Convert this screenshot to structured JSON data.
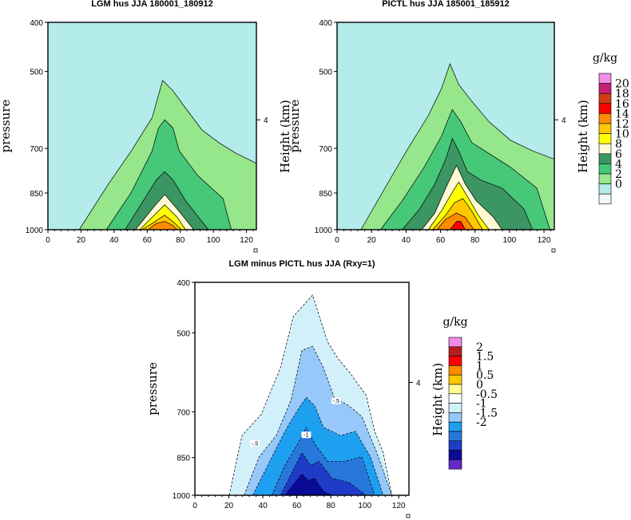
{
  "chart_data": [
    {
      "type": "heatmap",
      "title": "LGM hus JJA 180001_180912",
      "ylabel": "pressure",
      "right_label": "Height (km)",
      "right_tick": "4",
      "xlim": [
        0,
        126
      ],
      "x_ticks": [
        "0",
        "20",
        "40",
        "60",
        "80",
        "100",
        "120"
      ],
      "y_ticks": [
        "400",
        "500",
        "700",
        "850",
        "1000"
      ],
      "background_level": "0-2",
      "contour_levels": [
        2,
        4,
        6,
        8,
        10,
        12
      ],
      "peak_value_g_per_kg": 13,
      "peak_location": {
        "x": 70,
        "pressure": 1000
      }
    },
    {
      "type": "heatmap",
      "title": "PICTL hus JJA 185001_185912",
      "ylabel": "pressure",
      "right_label": "Height (km)",
      "right_tick": "4",
      "xlim": [
        0,
        126
      ],
      "x_ticks": [
        "0",
        "20",
        "40",
        "60",
        "80",
        "100",
        "120"
      ],
      "y_ticks": [
        "400",
        "500",
        "700",
        "850",
        "1000"
      ],
      "background_level": "0-2",
      "contour_levels": [
        2,
        4,
        6,
        8,
        10,
        12,
        14
      ],
      "peak_value_g_per_kg": 15,
      "peak_location": {
        "x": 70,
        "pressure": 1000
      }
    },
    {
      "type": "heatmap",
      "title": "LGM minus PICTL hus JJA (Rxy=1)",
      "ylabel": "pressure",
      "right_label": "Height (km)",
      "right_tick": "4",
      "xlim": [
        0,
        126
      ],
      "x_ticks": [
        "0",
        "20",
        "40",
        "60",
        "80",
        "100",
        "120"
      ],
      "y_ticks": [
        "400",
        "500",
        "700",
        "850",
        "1000"
      ],
      "contour_levels": [
        -1.5,
        -1,
        -0.5,
        0
      ],
      "min_value_g_per_kg": -1.9,
      "contour_labels": [
        "-.5",
        "-.5",
        "-1"
      ]
    }
  ],
  "colorbar_top": {
    "unit": "g/kg",
    "labels": [
      "20",
      "18",
      "16",
      "14",
      "12",
      "10",
      "8",
      "6",
      "4",
      "2",
      "0"
    ],
    "colors": [
      "#f08ce6",
      "#c81e78",
      "#d23c14",
      "#ff0000",
      "#ff8c00",
      "#ffc800",
      "#ffff00",
      "#fffad2",
      "#3c9664",
      "#46c878",
      "#96e68c",
      "#b4ebeb",
      "#f0f8f8"
    ]
  },
  "colorbar_bottom": {
    "unit": "g/kg",
    "labels": [
      "2",
      "1.5",
      "1",
      "0.5",
      "0",
      "-0.5",
      "-1",
      "-1.5",
      "-2"
    ],
    "colors": [
      "#f08ce6",
      "#b41e1e",
      "#ff0000",
      "#ff8c00",
      "#ffc800",
      "#ffff96",
      "#ffffff",
      "#d2f0fa",
      "#96c8fa",
      "#1ea0f0",
      "#2878dc",
      "#1e3cc8",
      "#0a0a96",
      "#6428c8"
    ]
  }
}
